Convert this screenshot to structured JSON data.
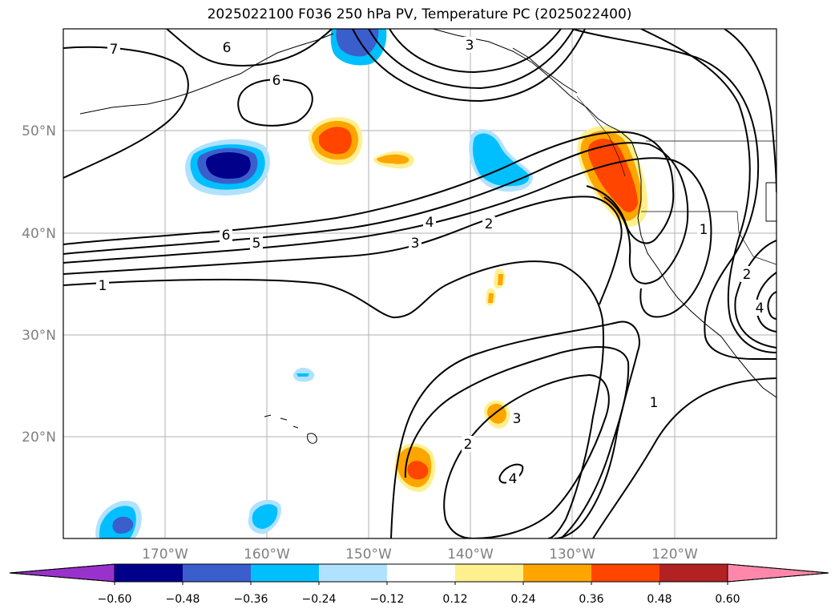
{
  "title": "2025022100 F036 250 hPa PV, Temperature PC (2025022400)",
  "map": {
    "lon_labels": [
      "170°W",
      "160°W",
      "150°W",
      "140°W",
      "130°W",
      "120°W"
    ],
    "lat_labels": [
      "50°N",
      "40°N",
      "30°N",
      "20°N"
    ],
    "contour_labels": [
      "7",
      "6",
      "6",
      "3",
      "6",
      "5",
      "4",
      "3",
      "2",
      "1",
      "1",
      "2",
      "4",
      "1",
      "2",
      "3",
      "4"
    ]
  },
  "colorbar": {
    "ticks": [
      "−0.60",
      "−0.48",
      "−0.36",
      "−0.24",
      "−0.12",
      "0.12",
      "0.24",
      "0.36",
      "0.48",
      "0.60"
    ],
    "colors": {
      "under": "#9932cc",
      "bins": [
        "#00008b",
        "#3a5fcd",
        "#00bfff",
        "#b0e2ff",
        "#ffffff",
        "#fff08f",
        "#ffa500",
        "#ff4500",
        "#b22222"
      ],
      "over": "#ff88aa"
    }
  }
}
